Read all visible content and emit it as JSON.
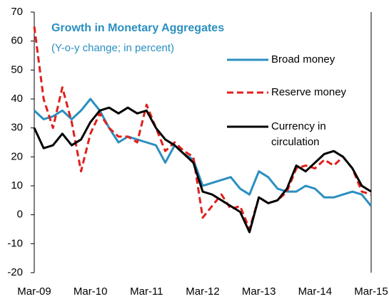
{
  "chart_data": {
    "type": "line",
    "title": "Growth in Monetary Aggregates",
    "subtitle": "(Y-o-y change; in percent)",
    "categories": [
      "Mar-09",
      null,
      null,
      null,
      null,
      null,
      "Mar-10",
      null,
      null,
      null,
      null,
      null,
      "Mar-11",
      null,
      null,
      null,
      null,
      null,
      "Mar-12",
      null,
      null,
      null,
      null,
      null,
      "Mar-13",
      null,
      null,
      null,
      null,
      null,
      "Mar-14",
      null,
      null,
      null,
      null,
      null,
      "Mar-15"
    ],
    "series": [
      {
        "name": "Broad money",
        "color": "#2b8fc0",
        "dashed": false,
        "values": [
          36,
          33,
          34,
          36,
          33,
          36,
          40,
          36,
          30,
          25,
          27,
          26,
          25,
          24,
          18,
          24,
          21,
          19,
          10,
          11,
          12,
          13,
          9,
          7,
          15,
          13,
          9,
          8,
          8,
          10,
          9,
          6,
          6,
          7,
          8,
          7,
          3
        ]
      },
      {
        "name": "Reserve money",
        "color": "#e0201b",
        "dashed": true,
        "values": [
          65,
          40,
          30,
          44,
          32,
          15,
          28,
          35,
          30,
          27,
          27,
          25,
          38,
          30,
          22,
          25,
          22,
          20,
          -1,
          3,
          7,
          2,
          3,
          -5,
          6,
          4,
          5,
          8,
          16,
          17,
          16,
          19,
          17,
          20,
          16,
          8,
          7
        ]
      },
      {
        "name": "Currency in circulation",
        "color": "#000000",
        "dashed": false,
        "values": [
          30,
          23,
          24,
          28,
          24,
          26,
          32,
          36,
          37,
          35,
          37,
          35,
          36,
          30,
          26,
          24,
          21,
          18,
          8,
          7,
          5,
          3,
          1,
          -6,
          6,
          4,
          5,
          9,
          17,
          15,
          18,
          21,
          22,
          20,
          16,
          10,
          8
        ]
      }
    ],
    "ylim": [
      -20,
      70
    ],
    "yticks": [
      -20,
      -10,
      0,
      10,
      20,
      30,
      40,
      50,
      60,
      70
    ],
    "grid": false
  }
}
